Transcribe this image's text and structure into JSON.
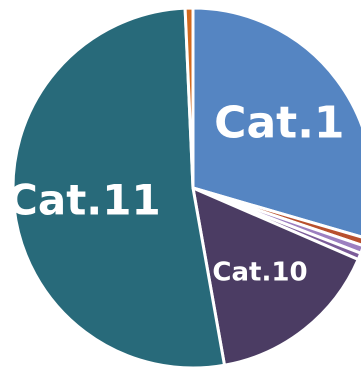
{
  "chart_data": {
    "type": "pie",
    "start_angle": "12 o'clock",
    "direction": "clockwise",
    "grid": false,
    "legend": "none",
    "slices": [
      {
        "label": "Cat.1",
        "value": 29.5,
        "color": "#5585C2",
        "show_label": true
      },
      {
        "label": "",
        "value": 0.7,
        "color": "#B8502E",
        "show_label": false
      },
      {
        "label": "",
        "value": 0.7,
        "color": "#9C7FC0",
        "show_label": false
      },
      {
        "label": "",
        "value": 0.6,
        "color": "#7B5C99",
        "show_label": false
      },
      {
        "label": "Cat.10",
        "value": 15.7,
        "color": "#4B3C63",
        "show_label": true
      },
      {
        "label": "Cat.11",
        "value": 52.1,
        "color": "#286A7A",
        "show_label": true
      },
      {
        "label": "",
        "value": 0.7,
        "color": "#D2691E",
        "show_label": false
      }
    ]
  }
}
